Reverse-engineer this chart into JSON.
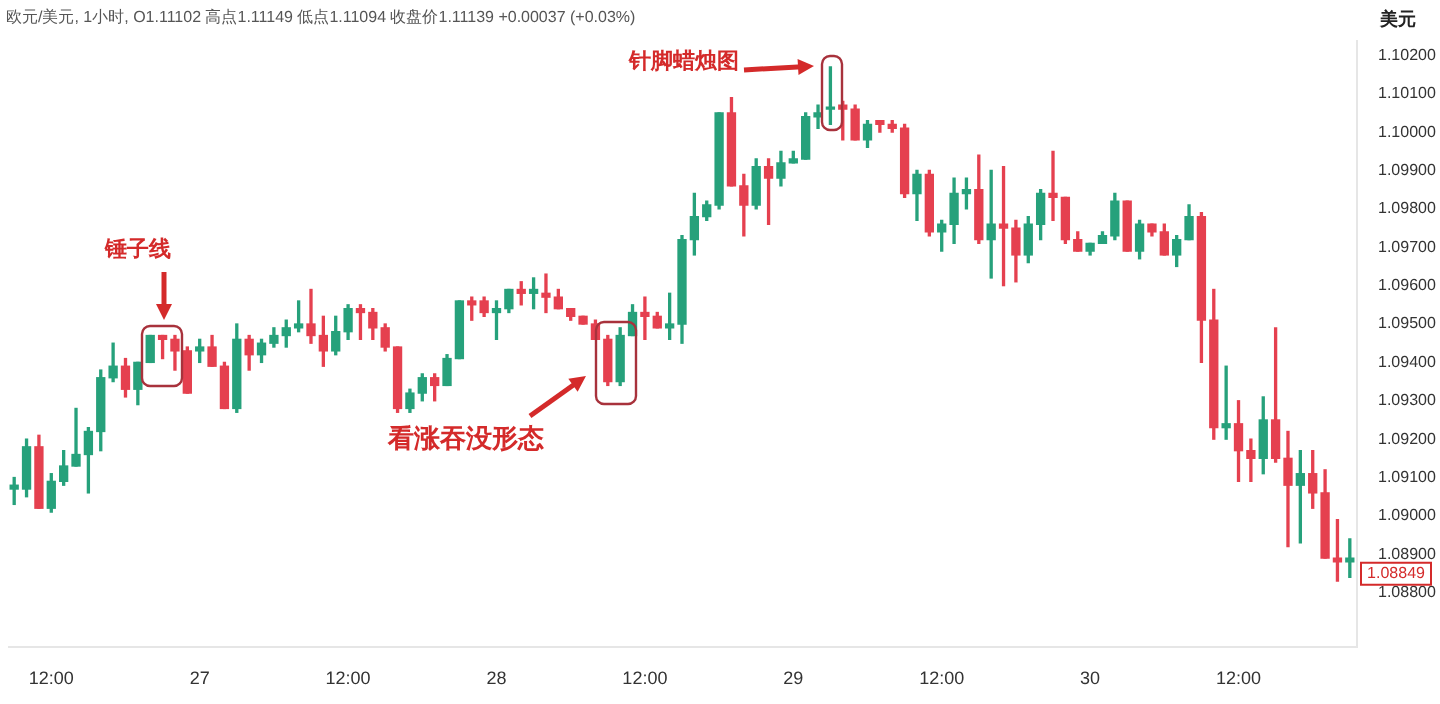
{
  "chart_data": {
    "type": "candlestick",
    "title": "欧元/美元, 1小时, O1.11102 高点1.11149 低点1.11094 收盘价1.11139 +0.00037 (+0.03%)",
    "ylabel": "美元",
    "annotations": [
      "锤子线",
      "看涨吞没形态",
      "针脚蜡烛图",
      {
        "text": "1.08849",
        "y": 1.08849
      }
    ],
    "categories": [
      null,
      null,
      null,
      "12:00",
      null,
      null,
      null,
      null,
      null,
      null,
      null,
      null,
      null,
      null,
      null,
      "27",
      null,
      null,
      null,
      null,
      null,
      null,
      null,
      null,
      null,
      null,
      null,
      "12:00",
      null,
      null,
      null,
      null,
      null,
      null,
      null,
      null,
      null,
      null,
      null,
      "28",
      null,
      null,
      null,
      null,
      null,
      null,
      null,
      null,
      null,
      null,
      null,
      "12:00",
      null,
      null,
      null,
      null,
      null,
      null,
      null,
      null,
      null,
      null,
      null,
      "29",
      null,
      null,
      null,
      null,
      null,
      null,
      null,
      null,
      null,
      null,
      null,
      "12:00",
      null,
      null,
      null,
      null,
      null,
      null,
      null,
      null,
      null,
      null,
      null,
      "30",
      null,
      null,
      null,
      null,
      null,
      null,
      null,
      null,
      null,
      null,
      null,
      "12:00",
      null,
      null,
      null,
      null,
      null,
      null,
      null,
      null,
      null
    ],
    "ohlc": [
      [
        1.0907,
        1.091,
        1.0903,
        1.0908
      ],
      [
        1.0907,
        1.092,
        1.0905,
        1.0918
      ],
      [
        1.0918,
        1.0921,
        1.0902,
        1.0902
      ],
      [
        1.0902,
        1.0911,
        1.0901,
        1.0909
      ],
      [
        1.0909,
        1.0917,
        1.0908,
        1.0913
      ],
      [
        1.0913,
        1.0928,
        1.0913,
        1.0916
      ],
      [
        1.0916,
        1.0923,
        1.0906,
        1.0922
      ],
      [
        1.0922,
        1.0938,
        1.0917,
        1.0936
      ],
      [
        1.0936,
        1.0945,
        1.0935,
        1.0939
      ],
      [
        1.0939,
        1.0941,
        1.0931,
        1.0933
      ],
      [
        1.0933,
        1.094,
        1.0929,
        1.094
      ],
      [
        1.094,
        1.0947,
        1.094,
        1.0947
      ],
      [
        1.0947,
        1.0947,
        1.0941,
        1.0946
      ],
      [
        1.0946,
        1.0947,
        1.0938,
        1.0943
      ],
      [
        1.0943,
        1.0944,
        1.0932,
        1.0932
      ],
      [
        1.0943,
        1.0946,
        1.094,
        1.0944
      ],
      [
        1.0944,
        1.0947,
        1.0939,
        1.0939
      ],
      [
        1.0939,
        1.094,
        1.0928,
        1.0928
      ],
      [
        1.0928,
        1.095,
        1.0927,
        1.0946
      ],
      [
        1.0946,
        1.0947,
        1.0938,
        1.0942
      ],
      [
        1.0942,
        1.0946,
        1.094,
        1.0945
      ],
      [
        1.0945,
        1.0949,
        1.0944,
        1.0947
      ],
      [
        1.0947,
        1.0951,
        1.0944,
        1.0949
      ],
      [
        1.0949,
        1.0956,
        1.0948,
        1.095
      ],
      [
        1.095,
        1.0959,
        1.0945,
        1.0947
      ],
      [
        1.0947,
        1.0952,
        1.0939,
        1.0943
      ],
      [
        1.0943,
        1.0952,
        1.0942,
        1.0948
      ],
      [
        1.0948,
        1.0955,
        1.0946,
        1.0954
      ],
      [
        1.0954,
        1.0955,
        1.0946,
        1.0953
      ],
      [
        1.0953,
        1.0954,
        1.0946,
        1.0949
      ],
      [
        1.0949,
        1.095,
        1.0943,
        1.0944
      ],
      [
        1.0944,
        1.0944,
        1.0927,
        1.0928
      ],
      [
        1.0928,
        1.0933,
        1.0927,
        1.0932
      ],
      [
        1.0932,
        1.0937,
        1.093,
        1.0936
      ],
      [
        1.0936,
        1.0937,
        1.093,
        1.0934
      ],
      [
        1.0934,
        1.0942,
        1.0934,
        1.0941
      ],
      [
        1.0941,
        1.0956,
        1.0941,
        1.0956
      ],
      [
        1.0956,
        1.0957,
        1.0951,
        1.0955
      ],
      [
        1.0956,
        1.0957,
        1.0952,
        1.0953
      ],
      [
        1.0953,
        1.0956,
        1.0946,
        1.0954
      ],
      [
        1.0954,
        1.0959,
        1.0953,
        1.0959
      ],
      [
        1.0959,
        1.0961,
        1.0955,
        1.0958
      ],
      [
        1.0958,
        1.0962,
        1.0954,
        1.0959
      ],
      [
        1.0958,
        1.0963,
        1.0953,
        1.0957
      ],
      [
        1.0957,
        1.0959,
        1.0954,
        1.0954
      ],
      [
        1.0954,
        1.0954,
        1.0951,
        1.0952
      ],
      [
        1.0952,
        1.0952,
        1.095,
        1.095
      ],
      [
        1.095,
        1.0951,
        1.0946,
        1.0946
      ],
      [
        1.0946,
        1.0947,
        1.0934,
        1.0935
      ],
      [
        1.0935,
        1.0949,
        1.0934,
        1.0947
      ],
      [
        1.0947,
        1.0955,
        1.0947,
        1.0953
      ],
      [
        1.0953,
        1.0957,
        1.0946,
        1.0952
      ],
      [
        1.0952,
        1.0953,
        1.0949,
        1.0949
      ],
      [
        1.0949,
        1.0958,
        1.0946,
        1.095
      ],
      [
        1.095,
        1.0973,
        1.0945,
        1.0972
      ],
      [
        1.0972,
        1.0984,
        1.0968,
        1.0978
      ],
      [
        1.0978,
        1.0982,
        1.0977,
        1.0981
      ],
      [
        1.0981,
        1.1005,
        1.098,
        1.1005
      ],
      [
        1.1005,
        1.1009,
        1.0986,
        1.0986
      ],
      [
        1.0986,
        1.0989,
        1.0973,
        1.0981
      ],
      [
        1.0981,
        1.0993,
        1.098,
        1.0991
      ],
      [
        1.0991,
        1.0993,
        1.0976,
        1.0988
      ],
      [
        1.0988,
        1.0995,
        1.0986,
        1.0992
      ],
      [
        1.0992,
        1.0995,
        1.0992,
        1.0993
      ],
      [
        1.0993,
        1.1005,
        1.0993,
        1.1004
      ],
      [
        1.1004,
        1.1007,
        1.1001,
        1.1005
      ],
      [
        1.1006,
        1.1017,
        1.1002,
        1.1006
      ],
      [
        1.1007,
        1.1008,
        1.0998,
        1.1006
      ],
      [
        1.1006,
        1.1007,
        1.0998,
        1.0998
      ],
      [
        1.0998,
        1.1003,
        1.0996,
        1.1002
      ],
      [
        1.1003,
        1.1003,
        1.1,
        1.1002
      ],
      [
        1.1002,
        1.1003,
        1.1,
        1.1001
      ],
      [
        1.1001,
        1.1002,
        1.0983,
        1.0984
      ],
      [
        1.0984,
        1.099,
        1.0977,
        1.0989
      ],
      [
        1.0989,
        1.099,
        1.0973,
        1.0974
      ],
      [
        1.0974,
        1.0977,
        1.0969,
        1.0976
      ],
      [
        1.0976,
        1.0988,
        1.0971,
        1.0984
      ],
      [
        1.0984,
        1.0988,
        1.098,
        1.0985
      ],
      [
        1.0985,
        1.0994,
        1.0971,
        1.0972
      ],
      [
        1.0972,
        1.099,
        1.0962,
        1.0976
      ],
      [
        1.0976,
        1.0991,
        1.096,
        1.0975
      ],
      [
        1.0975,
        1.0977,
        1.0961,
        1.0968
      ],
      [
        1.0968,
        1.0978,
        1.0966,
        1.0976
      ],
      [
        1.0976,
        1.0985,
        1.0972,
        1.0984
      ],
      [
        1.0984,
        1.0995,
        1.0977,
        1.0983
      ],
      [
        1.0983,
        1.0983,
        1.0971,
        1.0972
      ],
      [
        1.0972,
        1.0974,
        1.0969,
        1.0969
      ],
      [
        1.0969,
        1.0971,
        1.0968,
        1.0971
      ],
      [
        1.0971,
        1.0974,
        1.0971,
        1.0973
      ],
      [
        1.0973,
        1.0984,
        1.0972,
        1.0982
      ],
      [
        1.0982,
        1.0982,
        1.0969,
        1.0969
      ],
      [
        1.0969,
        1.0977,
        1.0967,
        1.0976
      ],
      [
        1.0976,
        1.0976,
        1.0973,
        1.0974
      ],
      [
        1.0974,
        1.0976,
        1.0968,
        1.0968
      ],
      [
        1.0968,
        1.0973,
        1.0965,
        1.0972
      ],
      [
        1.0972,
        1.0981,
        1.0972,
        1.0978
      ],
      [
        1.0978,
        1.0979,
        1.094,
        1.0951
      ],
      [
        1.0951,
        1.0959,
        1.092,
        1.0923
      ],
      [
        1.0923,
        1.0939,
        1.092,
        1.0924
      ],
      [
        1.0924,
        1.093,
        1.0909,
        1.0917
      ],
      [
        1.0917,
        1.092,
        1.0909,
        1.0915
      ],
      [
        1.0915,
        1.0931,
        1.0911,
        1.0925
      ],
      [
        1.0925,
        1.0949,
        1.0914,
        1.0915
      ],
      [
        1.0915,
        1.0922,
        1.0892,
        1.0908
      ],
      [
        1.0908,
        1.0917,
        1.0893,
        1.0911
      ],
      [
        1.0911,
        1.0917,
        1.0902,
        1.0906
      ],
      [
        1.0906,
        1.0912,
        1.0889,
        1.0889
      ],
      [
        1.0889,
        1.0899,
        1.0883,
        1.0888
      ],
      [
        1.0888,
        1.0894,
        1.0884,
        1.0889
      ]
    ],
    "colors": [
      "#26a17b",
      "#26a17b",
      "#e5404f",
      "#26a17b",
      "#26a17b",
      "#26a17b",
      "#26a17b",
      "#26a17b",
      "#26a17b",
      "#e5404f",
      "#26a17b",
      "#26a17b",
      "#e5404f",
      "#e5404f",
      "#e5404f",
      "#26a17b",
      "#e5404f",
      "#e5404f",
      "#26a17b",
      "#e5404f",
      "#26a17b",
      "#26a17b",
      "#26a17b",
      "#26a17b",
      "#e5404f",
      "#e5404f",
      "#26a17b",
      "#26a17b",
      "#e5404f",
      "#e5404f",
      "#e5404f",
      "#e5404f",
      "#26a17b",
      "#26a17b",
      "#e5404f",
      "#26a17b",
      "#26a17b",
      "#e5404f",
      "#e5404f",
      "#26a17b",
      "#26a17b",
      "#e5404f",
      "#26a17b",
      "#e5404f",
      "#e5404f",
      "#e5404f",
      "#e5404f",
      "#e5404f",
      "#e5404f",
      "#26a17b",
      "#26a17b",
      "#e5404f",
      "#e5404f",
      "#26a17b",
      "#26a17b",
      "#26a17b",
      "#26a17b",
      "#26a17b",
      "#e5404f",
      "#e5404f",
      "#26a17b",
      "#e5404f",
      "#26a17b",
      "#26a17b",
      "#26a17b",
      "#26a17b",
      "#26a17b",
      "#e5404f",
      "#e5404f",
      "#26a17b",
      "#e5404f",
      "#e5404f",
      "#e5404f",
      "#26a17b",
      "#e5404f",
      "#26a17b",
      "#26a17b",
      "#26a17b",
      "#e5404f",
      "#26a17b",
      "#e5404f",
      "#e5404f",
      "#26a17b",
      "#26a17b",
      "#e5404f",
      "#e5404f",
      "#e5404f",
      "#26a17b",
      "#26a17b",
      "#26a17b",
      "#e5404f",
      "#26a17b",
      "#e5404f",
      "#e5404f",
      "#26a17b",
      "#26a17b",
      "#e5404f",
      "#e5404f",
      "#26a17b",
      "#e5404f",
      "#e5404f",
      "#26a17b",
      "#e5404f",
      "#e5404f",
      "#26a17b",
      "#e5404f",
      "#e5404f",
      "#e5404f",
      "#26a17b"
    ],
    "ylim": [
      1.0866,
      1.1024
    ],
    "yticks": [
      {
        "value": 1.088,
        "label": "1.08800"
      },
      {
        "value": 1.089,
        "label": "1.08900"
      },
      {
        "value": 1.09,
        "label": "1.09000"
      },
      {
        "value": 1.091,
        "label": "1.09100"
      },
      {
        "value": 1.092,
        "label": "1.09200"
      },
      {
        "value": 1.093,
        "label": "1.09300"
      },
      {
        "value": 1.094,
        "label": "1.09400"
      },
      {
        "value": 1.095,
        "label": "1.09500"
      },
      {
        "value": 1.096,
        "label": "1.09600"
      },
      {
        "value": 1.097,
        "label": "1.09700"
      },
      {
        "value": 1.098,
        "label": "1.09800"
      },
      {
        "value": 1.099,
        "label": "1.09900"
      },
      {
        "value": 1.1,
        "label": "1.10000"
      },
      {
        "value": 1.101,
        "label": "1.10100"
      },
      {
        "value": 1.102,
        "label": "1.10200"
      }
    ]
  }
}
